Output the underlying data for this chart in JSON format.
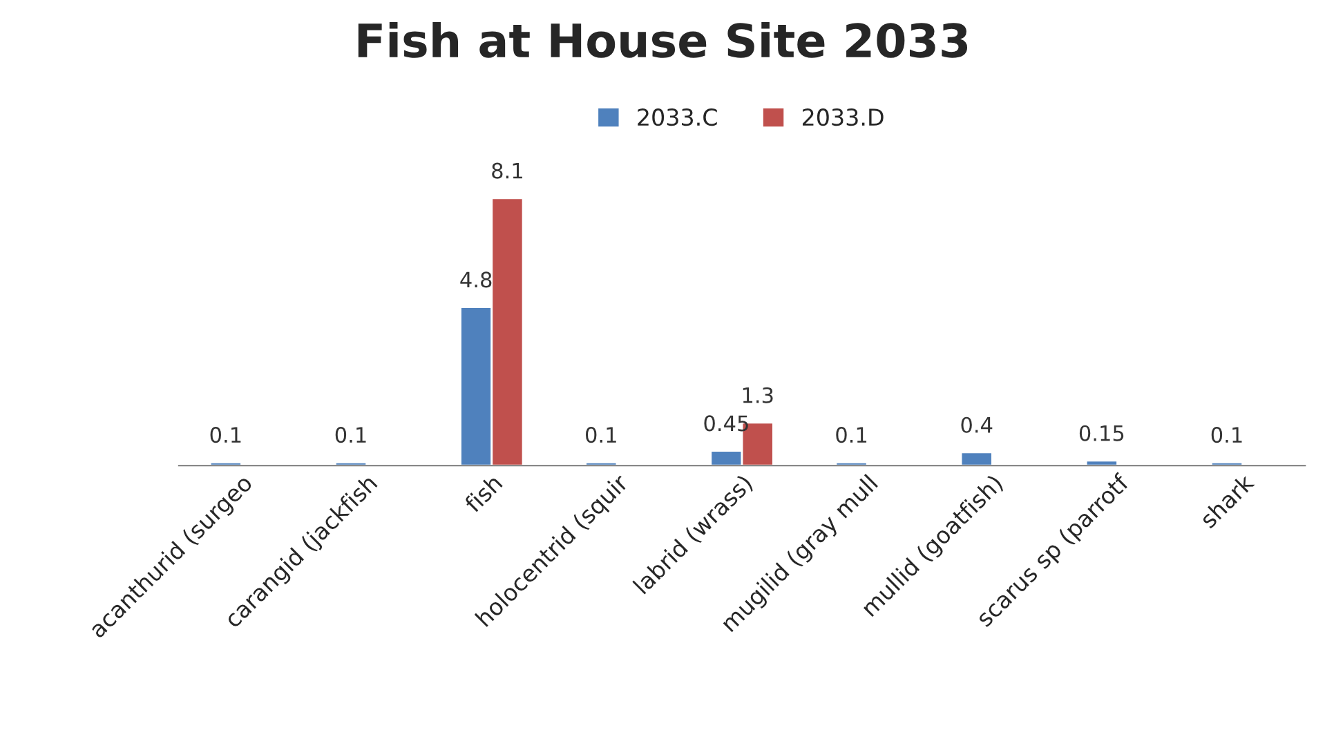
{
  "chart_data": {
    "type": "bar",
    "title": "Fish at House Site 2033",
    "categories": [
      "acanthurid (surgeo",
      "carangid (jackfish",
      "fish",
      "holocentrid (squir",
      "labrid (wrass)",
      "mugilid (gray mull",
      "mullid (goatfish)",
      "scarus sp (parrotf",
      "shark"
    ],
    "series": [
      {
        "name": "2033.C",
        "color": "#4f81bd",
        "values": [
          0.1,
          0.1,
          4.8,
          0.1,
          0.45,
          0.1,
          0.4,
          0.15,
          0.1
        ]
      },
      {
        "name": "2033.D",
        "color": "#c0504d",
        "values": [
          null,
          null,
          8.1,
          null,
          1.3,
          null,
          null,
          null,
          null
        ]
      }
    ],
    "data_labels": true,
    "legend": "top",
    "grid": false,
    "tick_labels": "x"
  }
}
